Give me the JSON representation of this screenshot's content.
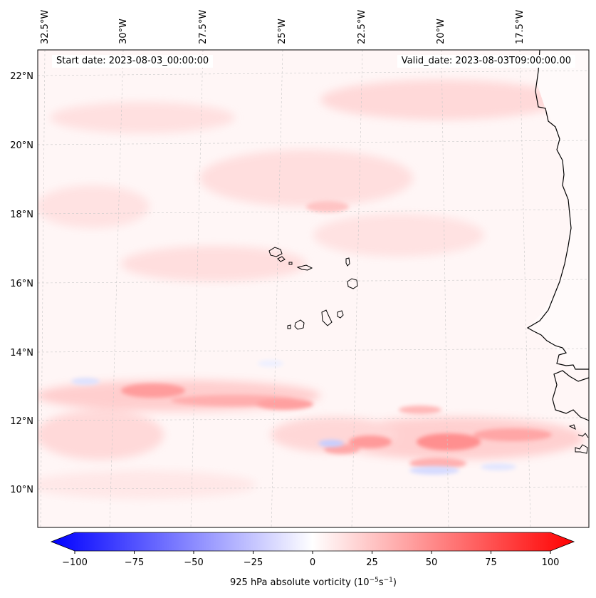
{
  "header": {
    "start_date": "Start date: 2023-08-03_00:00:00",
    "valid_date": "Valid_date: 2023-08-03T09:00:00.00"
  },
  "map": {
    "longitude_labels": [
      "32.5°W",
      "30°W",
      "27.5°W",
      "25°W",
      "22.5°W",
      "20°W",
      "17.5°W"
    ],
    "latitude_labels": [
      "22°N",
      "20°N",
      "18°N",
      "16°N",
      "14°N",
      "12°N",
      "10°N"
    ],
    "grid": true,
    "coastline_color": "#000000",
    "features": [
      "Cape Verde islands",
      "West African coastline (Mauritania, Senegal, Gambia, Guinea-Bissau)"
    ]
  },
  "colorbar": {
    "ticks": [
      "−100",
      "−75",
      "−50",
      "−25",
      "0",
      "25",
      "50",
      "75",
      "100"
    ],
    "label": "925 hPa absolute vorticity (10",
    "label_exp1": "−5",
    "label_mid": "s",
    "label_exp2": "−1",
    "label_end": ")",
    "min_color": "#0000ff",
    "mid_color": "#ffffff",
    "max_color": "#ff0000",
    "extend": "both"
  }
}
